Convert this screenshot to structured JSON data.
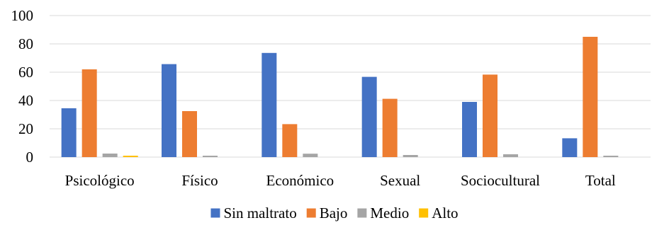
{
  "chart_data": {
    "type": "bar",
    "title": "",
    "xlabel": "",
    "ylabel": "",
    "ylim": [
      0,
      100
    ],
    "yticks": [
      0,
      20,
      40,
      60,
      80,
      100
    ],
    "grid": true,
    "legend_position": "bottom",
    "categories": [
      "Psicológico",
      "Físico",
      "Económico",
      "Sexual",
      "Sociocultural",
      "Total"
    ],
    "series": [
      {
        "name": "Sin maltrato",
        "color": "#4472C4",
        "values": [
          34.5,
          65.7,
          73.6,
          56.7,
          39.0,
          13.3
        ]
      },
      {
        "name": "Bajo",
        "color": "#ED7D31",
        "values": [
          62.0,
          32.5,
          23.3,
          41.2,
          58.3,
          85.0
        ]
      },
      {
        "name": "Medio",
        "color": "#A5A5A5",
        "values": [
          2.5,
          1.0,
          2.4,
          1.5,
          2.0,
          1.0
        ]
      },
      {
        "name": "Alto",
        "color": "#FFC000",
        "values": [
          1.0,
          0,
          0,
          0,
          0,
          0
        ]
      }
    ]
  }
}
